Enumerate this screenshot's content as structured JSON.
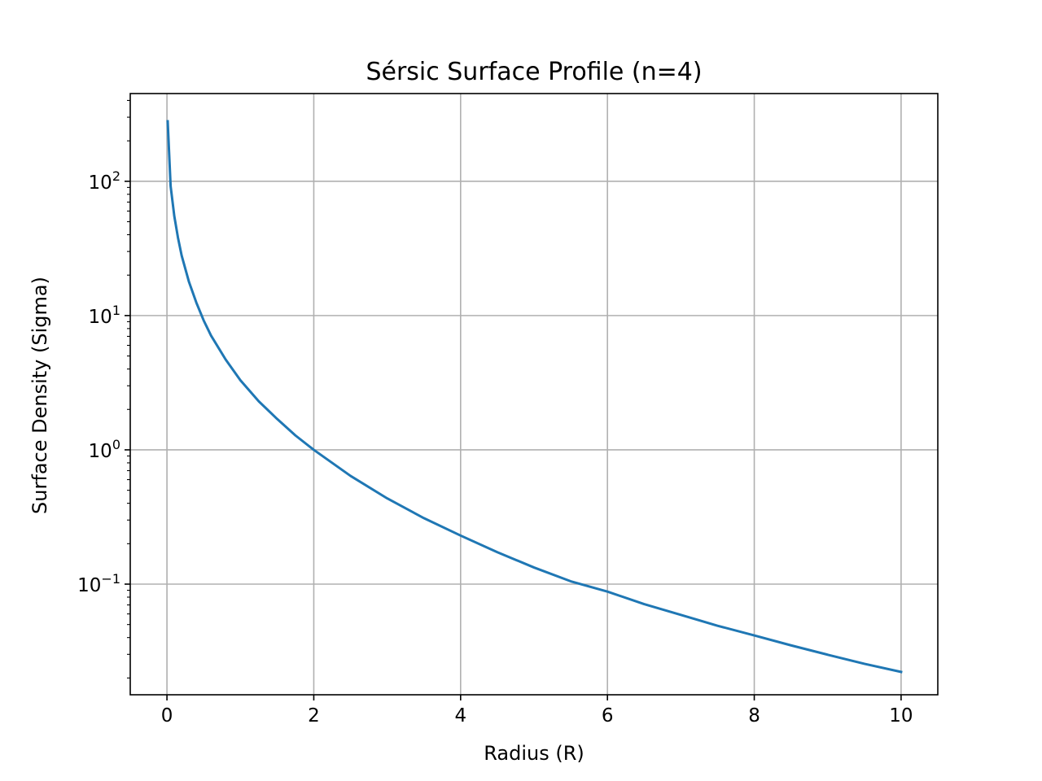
{
  "chart_data": {
    "type": "line",
    "title": "Sérsic Surface Profile (n=4)",
    "xlabel": "Radius (R)",
    "ylabel": "Surface Density (Sigma)",
    "xlim": [
      -0.5,
      10.5
    ],
    "ylim": [
      0.015,
      450
    ],
    "xscale": "linear",
    "yscale": "log",
    "grid": true,
    "xticks": [
      0,
      2,
      4,
      6,
      8,
      10
    ],
    "xtick_labels": [
      "0",
      "2",
      "4",
      "6",
      "8",
      "10"
    ],
    "yticks": [
      0.1,
      1,
      10,
      100
    ],
    "ytick_labels": [
      {
        "base": "10",
        "exp": "−1"
      },
      {
        "base": "10",
        "exp": "0"
      },
      {
        "base": "10",
        "exp": "1"
      },
      {
        "base": "10",
        "exp": "2"
      }
    ],
    "line_color": "#1f77b4",
    "series": [
      {
        "x": [
          0.01,
          0.05,
          0.1,
          0.15,
          0.2,
          0.3,
          0.4,
          0.5,
          0.6,
          0.8,
          1.0,
          1.25,
          1.5,
          1.75,
          2.0,
          2.5,
          3.0,
          3.5,
          4.0,
          4.5,
          5.0,
          5.5,
          6.0,
          6.5,
          7.0,
          7.5,
          8.0,
          8.5,
          9.0,
          9.5,
          10.0
        ],
        "y": [
          280,
          92,
          55,
          38,
          28,
          17.8,
          12.5,
          9.2,
          7.1,
          4.7,
          3.3,
          2.3,
          1.7,
          1.28,
          1.0,
          0.64,
          0.435,
          0.31,
          0.23,
          0.173,
          0.133,
          0.105,
          0.088,
          0.071,
          0.059,
          0.049,
          0.0415,
          0.035,
          0.0298,
          0.0255,
          0.0222
        ]
      }
    ]
  }
}
